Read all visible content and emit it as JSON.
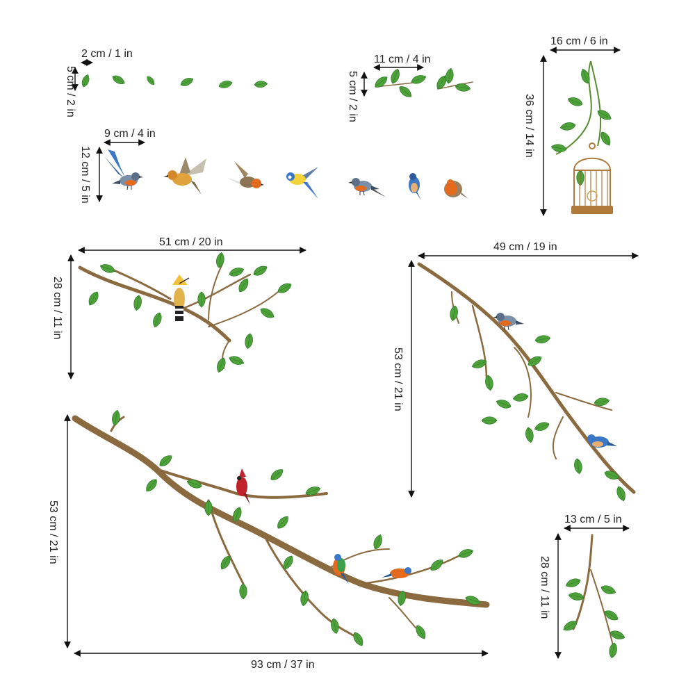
{
  "dimensions": {
    "leaves_small_width": "2 cm / 1 in",
    "leaves_small_height": "5 cm / 2 in",
    "leaf_pair_width": "11 cm / 4 in",
    "leaf_pair_height": "5 cm / 2 in",
    "birds_width": "9 cm / 4 in",
    "birds_height": "12 cm / 5 in",
    "birdcage_width": "16 cm / 6 in",
    "birdcage_height": "36 cm / 14 in",
    "branch_left_width": "51 cm / 20 in",
    "branch_left_height": "28 cm / 11 in",
    "branch_right_width": "49 cm / 19 in",
    "branch_right_height": "53 cm / 21 in",
    "branch_large_width": "93 cm / 37 in",
    "branch_large_height": "53 cm / 21 in",
    "twig_width": "13 cm / 5 in",
    "twig_height": "28 cm / 11 in"
  },
  "colors": {
    "leaf": "#4fa23a",
    "leaf_dark": "#2f7d2a",
    "branch": "#8a6a3e",
    "cage": "#b07a3a",
    "robin_orange": "#e46a1e",
    "bluetit_blue": "#3b78c8",
    "bluetit_yellow": "#f2d33a",
    "cardinal_red": "#c0242a"
  },
  "icons": [
    "leaf-icon",
    "bird-icon",
    "birdcage-icon",
    "branch-icon"
  ]
}
